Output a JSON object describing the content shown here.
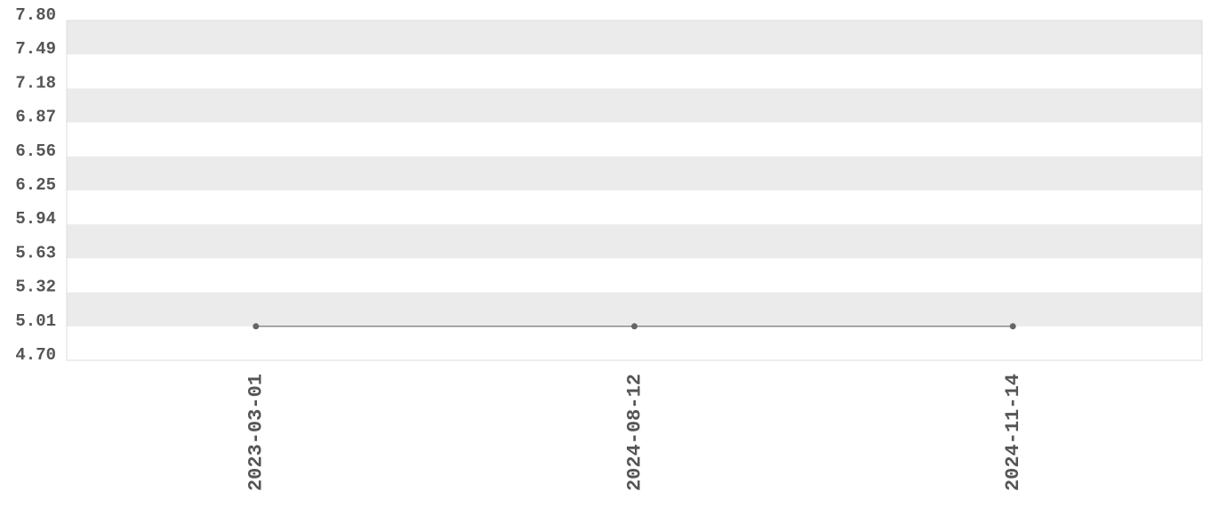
{
  "chart_data": {
    "type": "line",
    "categories": [
      "2023-03-01",
      "2024-08-12",
      "2024-11-14"
    ],
    "values": [
      5.01,
      5.01,
      5.01
    ],
    "color": "#666666",
    "ylim": [
      4.7,
      7.8
    ],
    "yticks": [
      {
        "value": 4.7,
        "label": "4.70"
      },
      5.01,
      5.32,
      5.63,
      5.94,
      6.25,
      6.56,
      6.87,
      7.18,
      7.49,
      {
        "value": 7.8,
        "label": "7.80"
      }
    ],
    "grid": true
  }
}
